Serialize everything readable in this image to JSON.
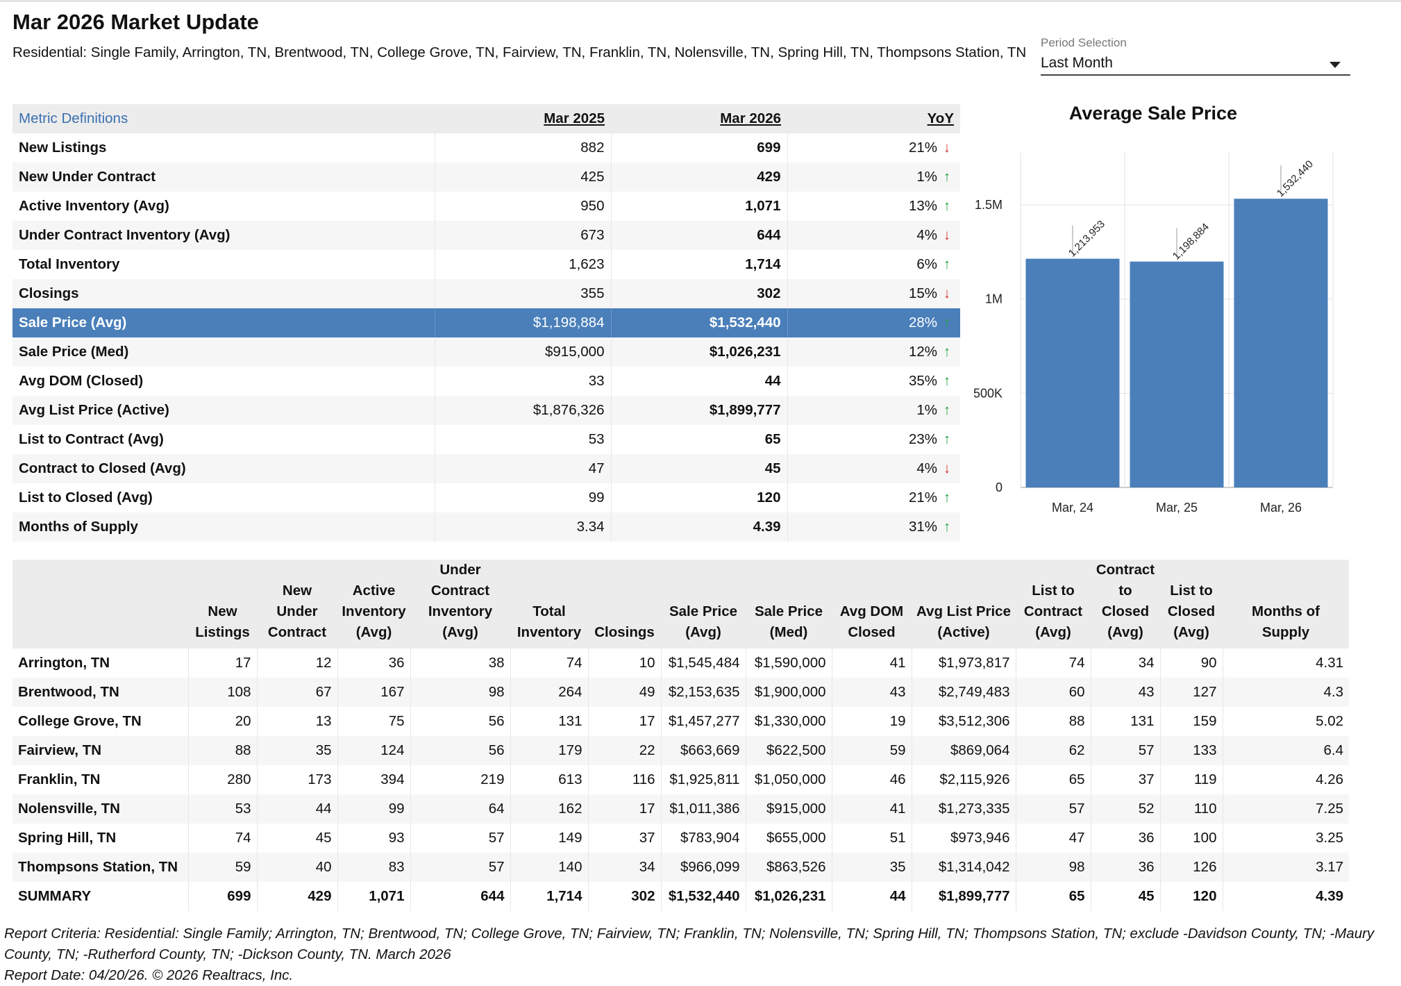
{
  "header": {
    "title": "Mar 2026 Market Update",
    "subtitle": "Residential: Single Family, Arrington, TN, Brentwood, TN, College Grove, TN, Fairview, TN, Franklin, TN, Nolensville, TN, Spring Hill, TN, Thompsons Station, TN"
  },
  "period": {
    "label": "Period Selection",
    "value": "Last Month"
  },
  "metrics": {
    "definitions_link": "Metric Definitions",
    "col_prev": "Mar 2025",
    "col_cur": "Mar 2026",
    "col_yoy": "YoY",
    "highlighted_row": 6,
    "rows": [
      {
        "name": "New Listings",
        "prev": "882",
        "cur": "699",
        "yoy": "21%",
        "dir": "down"
      },
      {
        "name": "New Under Contract",
        "prev": "425",
        "cur": "429",
        "yoy": "1%",
        "dir": "up"
      },
      {
        "name": "Active Inventory (Avg)",
        "prev": "950",
        "cur": "1,071",
        "yoy": "13%",
        "dir": "up"
      },
      {
        "name": "Under Contract Inventory (Avg)",
        "prev": "673",
        "cur": "644",
        "yoy": "4%",
        "dir": "down"
      },
      {
        "name": "Total Inventory",
        "prev": "1,623",
        "cur": "1,714",
        "yoy": "6%",
        "dir": "up"
      },
      {
        "name": "Closings",
        "prev": "355",
        "cur": "302",
        "yoy": "15%",
        "dir": "down"
      },
      {
        "name": "Sale Price (Avg)",
        "prev": "$1,198,884",
        "cur": "$1,532,440",
        "yoy": "28%",
        "dir": "up"
      },
      {
        "name": "Sale Price (Med)",
        "prev": "$915,000",
        "cur": "$1,026,231",
        "yoy": "12%",
        "dir": "up"
      },
      {
        "name": "Avg DOM (Closed)",
        "prev": "33",
        "cur": "44",
        "yoy": "35%",
        "dir": "up"
      },
      {
        "name": "Avg List Price (Active)",
        "prev": "$1,876,326",
        "cur": "$1,899,777",
        "yoy": "1%",
        "dir": "up"
      },
      {
        "name": "List to Contract (Avg)",
        "prev": "53",
        "cur": "65",
        "yoy": "23%",
        "dir": "up"
      },
      {
        "name": "Contract to Closed (Avg)",
        "prev": "47",
        "cur": "45",
        "yoy": "4%",
        "dir": "down"
      },
      {
        "name": "List to Closed (Avg)",
        "prev": "99",
        "cur": "120",
        "yoy": "21%",
        "dir": "up"
      },
      {
        "name": "Months of Supply",
        "prev": "3.34",
        "cur": "4.39",
        "yoy": "31%",
        "dir": "up"
      }
    ]
  },
  "chart_data": {
    "type": "bar",
    "title": "Average Sale Price",
    "categories": [
      "Mar, 24",
      "Mar, 25",
      "Mar, 26"
    ],
    "values": [
      1213953,
      1198884,
      1532440
    ],
    "value_labels": [
      "1,213,953",
      "1,198,884",
      "1,532,440"
    ],
    "ylim": [
      0,
      1500000
    ],
    "yticks": [
      0,
      500000,
      1000000,
      1500000
    ],
    "ytick_labels": [
      "0",
      "500K",
      "1M",
      "1.5M"
    ],
    "grid": true,
    "bar_color": "#4a7fba"
  },
  "cities": {
    "headers": [
      "",
      "New\nListings",
      "New Under\nContract",
      "Active\nInventory\n(Avg)",
      "Under Contract\nInventory\n(Avg)",
      "Total\nInventory",
      "Closings",
      "Sale Price\n(Avg)",
      "Sale Price\n(Med)",
      "Avg DOM\nClosed",
      "Avg List Price\n(Active)",
      "List to\nContract\n(Avg)",
      "Contract\nto Closed\n(Avg)",
      "List to\nClosed\n(Avg)",
      "Months of\nSupply"
    ],
    "rows": [
      [
        "Arrington, TN",
        "17",
        "12",
        "36",
        "38",
        "74",
        "10",
        "$1,545,484",
        "$1,590,000",
        "41",
        "$1,973,817",
        "74",
        "34",
        "90",
        "4.31"
      ],
      [
        "Brentwood, TN",
        "108",
        "67",
        "167",
        "98",
        "264",
        "49",
        "$2,153,635",
        "$1,900,000",
        "43",
        "$2,749,483",
        "60",
        "43",
        "127",
        "4.3"
      ],
      [
        "College Grove, TN",
        "20",
        "13",
        "75",
        "56",
        "131",
        "17",
        "$1,457,277",
        "$1,330,000",
        "19",
        "$3,512,306",
        "88",
        "131",
        "159",
        "5.02"
      ],
      [
        "Fairview, TN",
        "88",
        "35",
        "124",
        "56",
        "179",
        "22",
        "$663,669",
        "$622,500",
        "59",
        "$869,064",
        "62",
        "57",
        "133",
        "6.4"
      ],
      [
        "Franklin, TN",
        "280",
        "173",
        "394",
        "219",
        "613",
        "116",
        "$1,925,811",
        "$1,050,000",
        "46",
        "$2,115,926",
        "65",
        "37",
        "119",
        "4.26"
      ],
      [
        "Nolensville, TN",
        "53",
        "44",
        "99",
        "64",
        "162",
        "17",
        "$1,011,386",
        "$915,000",
        "41",
        "$1,273,335",
        "57",
        "52",
        "110",
        "7.25"
      ],
      [
        "Spring Hill, TN",
        "74",
        "45",
        "93",
        "57",
        "149",
        "37",
        "$783,904",
        "$655,000",
        "51",
        "$973,946",
        "47",
        "36",
        "100",
        "3.25"
      ],
      [
        "Thompsons Station, TN",
        "59",
        "40",
        "83",
        "57",
        "140",
        "34",
        "$966,099",
        "$863,526",
        "35",
        "$1,314,042",
        "98",
        "36",
        "126",
        "3.17"
      ]
    ],
    "summary": [
      "SUMMARY",
      "699",
      "429",
      "1,071",
      "644",
      "1,714",
      "302",
      "$1,532,440",
      "$1,026,231",
      "44",
      "$1,899,777",
      "65",
      "45",
      "120",
      "4.39"
    ]
  },
  "footer": {
    "criteria": "Report Criteria: Residential: Single Family; Arrington, TN; Brentwood, TN; College Grove, TN; Fairview, TN; Franklin, TN; Nolensville, TN; Spring Hill, TN; Thompsons Station, TN; exclude -Davidson County, TN; -Maury County, TN; -Rutherford County, TN; -Dickson County, TN. March 2026",
    "report_date": "Report Date: 04/20/26. © 2026 Realtracs, Inc."
  }
}
